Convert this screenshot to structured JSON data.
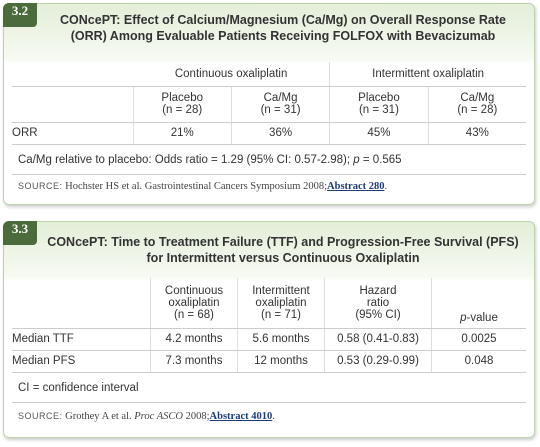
{
  "tables": [
    {
      "number": "3.2",
      "title": "CONcePT: Effect of Calcium/Magnesium (Ca/Mg) on Overall Response Rate (ORR) Among Evaluable Patients Receiving FOLFOX with Bevacizumab",
      "groups": [
        "Continuous oxaliplatin",
        "Intermittent oxaliplatin"
      ],
      "columns": [
        [
          "Placebo",
          "(n = 28)"
        ],
        [
          "Ca/Mg",
          "(n = 31)"
        ],
        [
          "Placebo",
          "(n = 31)"
        ],
        [
          "Ca/Mg",
          "(n = 28)"
        ]
      ],
      "rows": [
        [
          "ORR",
          "21%",
          "36%",
          "45%",
          "43%"
        ]
      ],
      "note": [
        "Ca/Mg relative to placebo: Odds ratio = 1.29 (95% CI: 0.57-2.98); ",
        "p",
        " = 0.565"
      ],
      "source": [
        "SOURCE:",
        "Hochster HS et al. Gastrointestinal Cancers Symposium 2008;",
        "Abstract 280",
        "."
      ]
    },
    {
      "number": "3.3",
      "title": "CONcePT: Time to Treatment Failure (TTF) and Progression-Free Survival (PFS) for Intermittent versus Continuous Oxaliplatin",
      "columns": [
        [
          "Continuous",
          "oxaliplatin",
          "(n = 68)"
        ],
        [
          "Intermittent",
          "oxaliplatin",
          "(n = 71)"
        ],
        [
          "Hazard",
          "ratio",
          "(95% CI)"
        ]
      ],
      "pvalue_header": [
        "p",
        "-value"
      ],
      "rows": [
        [
          "Median TTF",
          "4.2 months",
          "5.6 months",
          "0.58 (0.41-0.83)",
          "0.0025"
        ],
        [
          "Median PFS",
          "7.3 months",
          "12 months",
          "0.53 (0.29-0.99)",
          "0.048"
        ]
      ],
      "note": "CI = confidence interval",
      "source": [
        "SOURCE:",
        "Grothey A et al. ",
        "Proc ASCO",
        " 2008;",
        "Abstract 4010",
        "."
      ]
    }
  ]
}
